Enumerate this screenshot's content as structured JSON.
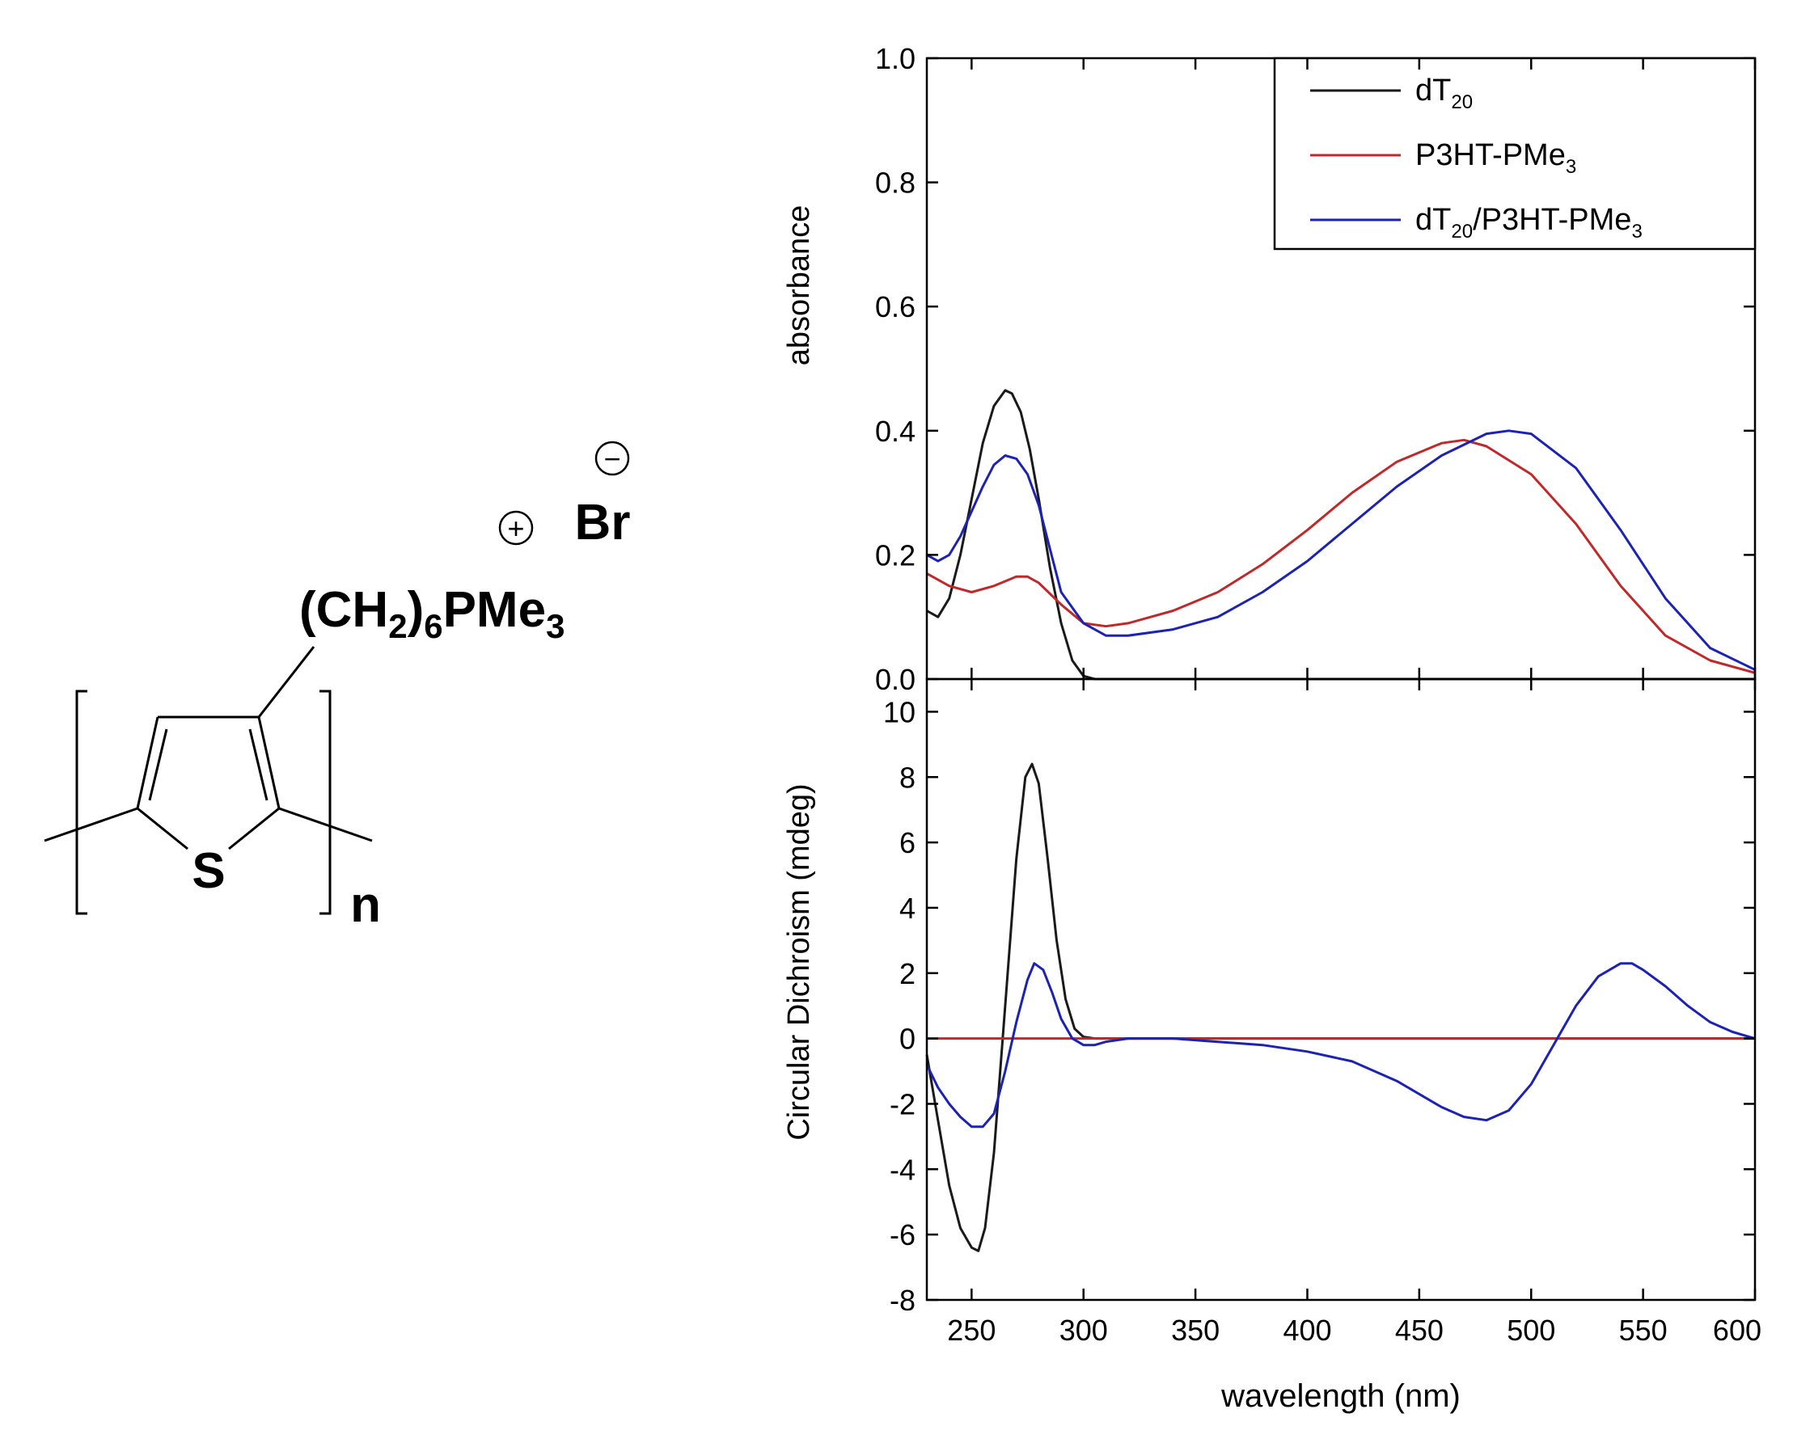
{
  "structure": {
    "counter_ion": "Br",
    "side_chain_main": "(CH",
    "side_chain_sub1": "2",
    "side_chain_close": ")",
    "side_chain_sub2": "6",
    "cation_group": "PMe",
    "cation_sub": "3",
    "ring_atom": "S",
    "repeat_index": "n",
    "plus_sign": "+",
    "minus_sign": "−"
  },
  "legend": [
    {
      "main": "dT",
      "sub": "20",
      "tail": "",
      "tail_sub": "",
      "color": "#1a1a1a"
    },
    {
      "main": "P3HT-PMe",
      "sub": "3",
      "tail": "",
      "tail_sub": "",
      "color": "#c0282a"
    },
    {
      "main": "dT",
      "sub": "20",
      "tail": "/P3HT-PMe",
      "tail_sub": "3",
      "color": "#1c22b4"
    }
  ],
  "chart_data": [
    {
      "type": "line",
      "xlabel": "wavelength (nm)",
      "ylabel": "absorbance",
      "xlim": [
        230,
        600
      ],
      "ylim": [
        0.0,
        1.0
      ],
      "xticks": [
        "250",
        "300",
        "350",
        "400",
        "450",
        "500",
        "550",
        "600"
      ],
      "yticks": [
        "0.0",
        "0.2",
        "0.4",
        "0.6",
        "0.8",
        "1.0"
      ],
      "legend_position": "top-right",
      "grid": false,
      "series": [
        {
          "name": "dT20",
          "color": "#1a1a1a",
          "x": [
            230,
            235,
            240,
            245,
            250,
            255,
            260,
            265,
            268,
            272,
            276,
            280,
            285,
            290,
            295,
            300,
            305,
            310,
            600
          ],
          "y": [
            0.11,
            0.1,
            0.13,
            0.2,
            0.29,
            0.38,
            0.44,
            0.465,
            0.46,
            0.43,
            0.37,
            0.29,
            0.18,
            0.09,
            0.03,
            0.005,
            0.0,
            0.0,
            0.0
          ]
        },
        {
          "name": "P3HT-PMe3",
          "color": "#c0282a",
          "x": [
            230,
            240,
            250,
            260,
            270,
            275,
            280,
            290,
            300,
            310,
            320,
            340,
            360,
            380,
            400,
            420,
            440,
            460,
            470,
            480,
            500,
            520,
            540,
            560,
            580,
            600
          ],
          "y": [
            0.17,
            0.15,
            0.14,
            0.15,
            0.165,
            0.165,
            0.155,
            0.12,
            0.09,
            0.085,
            0.09,
            0.11,
            0.14,
            0.185,
            0.24,
            0.3,
            0.35,
            0.38,
            0.385,
            0.375,
            0.33,
            0.25,
            0.15,
            0.07,
            0.03,
            0.01
          ]
        },
        {
          "name": "dT20/P3HT-PMe3",
          "color": "#1c22b4",
          "x": [
            230,
            235,
            240,
            245,
            250,
            255,
            260,
            265,
            270,
            275,
            280,
            285,
            290,
            300,
            310,
            320,
            340,
            360,
            380,
            400,
            420,
            440,
            460,
            480,
            490,
            500,
            520,
            540,
            560,
            580,
            600
          ],
          "y": [
            0.2,
            0.19,
            0.2,
            0.23,
            0.27,
            0.31,
            0.345,
            0.36,
            0.355,
            0.33,
            0.28,
            0.21,
            0.14,
            0.09,
            0.07,
            0.07,
            0.08,
            0.1,
            0.14,
            0.19,
            0.25,
            0.31,
            0.36,
            0.395,
            0.4,
            0.395,
            0.34,
            0.24,
            0.13,
            0.05,
            0.015
          ]
        }
      ]
    },
    {
      "type": "line",
      "xlabel": "wavelength (nm)",
      "ylabel": "Circular Dichroism (mdeg)",
      "xlim": [
        230,
        600
      ],
      "ylim": [
        -8,
        11
      ],
      "xticks": [
        "250",
        "300",
        "350",
        "400",
        "450",
        "500",
        "550",
        "600"
      ],
      "yticks": [
        "10",
        "8",
        "6",
        "4",
        "2",
        "0",
        "-2",
        "-4",
        "-6",
        "-8"
      ],
      "grid": false,
      "series": [
        {
          "name": "dT20",
          "color": "#1a1a1a",
          "x": [
            230,
            235,
            240,
            245,
            250,
            253,
            256,
            260,
            265,
            270,
            274,
            277,
            280,
            284,
            288,
            292,
            296,
            300,
            305,
            310,
            600
          ],
          "y": [
            -0.5,
            -2.5,
            -4.5,
            -5.8,
            -6.4,
            -6.5,
            -5.8,
            -3.5,
            1.0,
            5.5,
            8.0,
            8.4,
            7.8,
            5.5,
            3.0,
            1.2,
            0.3,
            0.05,
            0.0,
            0.0,
            0.0
          ]
        },
        {
          "name": "P3HT-PMe3",
          "color": "#c0282a",
          "x": [
            230,
            600
          ],
          "y": [
            0.0,
            0.0
          ]
        },
        {
          "name": "dT20/P3HT-PMe3",
          "color": "#1c22b4",
          "x": [
            230,
            235,
            240,
            245,
            250,
            255,
            260,
            265,
            270,
            275,
            278,
            282,
            286,
            290,
            295,
            300,
            305,
            310,
            320,
            340,
            360,
            380,
            400,
            420,
            440,
            460,
            470,
            480,
            490,
            500,
            510,
            520,
            530,
            540,
            545,
            550,
            560,
            570,
            580,
            590,
            600
          ],
          "y": [
            -0.8,
            -1.5,
            -2.0,
            -2.4,
            -2.7,
            -2.7,
            -2.3,
            -1.0,
            0.5,
            1.8,
            2.3,
            2.1,
            1.4,
            0.6,
            0.0,
            -0.2,
            -0.2,
            -0.1,
            0.0,
            0.0,
            -0.1,
            -0.2,
            -0.4,
            -0.7,
            -1.3,
            -2.1,
            -2.4,
            -2.5,
            -2.2,
            -1.4,
            -0.2,
            1.0,
            1.9,
            2.3,
            2.3,
            2.1,
            1.6,
            1.0,
            0.5,
            0.2,
            0.0
          ]
        }
      ]
    }
  ]
}
